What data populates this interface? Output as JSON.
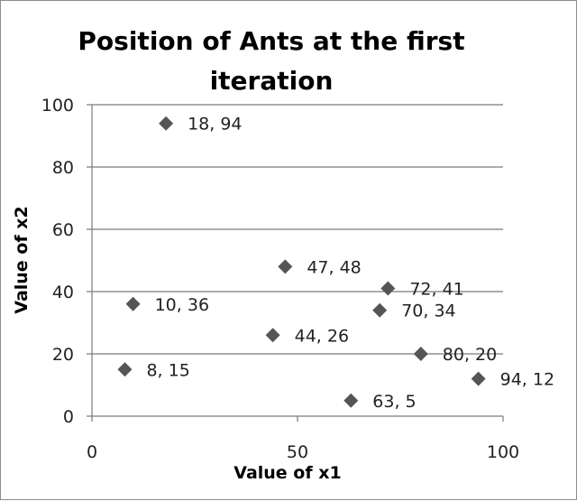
{
  "chart_data": {
    "type": "scatter",
    "title": "Position of Ants at the first iteration",
    "title_lines": [
      "Position of Ants at the first",
      "iteration"
    ],
    "xlabel": "Value of x1",
    "ylabel": "Value of x2",
    "xlim": [
      0,
      100
    ],
    "ylim": [
      0,
      100
    ],
    "xticks": [
      0,
      50,
      100
    ],
    "yticks": [
      0,
      20,
      40,
      60,
      80,
      100
    ],
    "grid": "horizontal",
    "legend": "none",
    "marker": "diamond",
    "marker_color": "#555555",
    "points": [
      {
        "x": 18,
        "y": 94,
        "label": "18, 94"
      },
      {
        "x": 47,
        "y": 48,
        "label": "47, 48"
      },
      {
        "x": 72,
        "y": 41,
        "label": "72, 41"
      },
      {
        "x": 10,
        "y": 36,
        "label": "10, 36"
      },
      {
        "x": 70,
        "y": 34,
        "label": "70, 34"
      },
      {
        "x": 44,
        "y": 26,
        "label": "44, 26"
      },
      {
        "x": 80,
        "y": 20,
        "label": "80, 20"
      },
      {
        "x": 8,
        "y": 15,
        "label": "8, 15"
      },
      {
        "x": 94,
        "y": 12,
        "label": "94, 12"
      },
      {
        "x": 63,
        "y": 5,
        "label": "63, 5"
      }
    ]
  }
}
